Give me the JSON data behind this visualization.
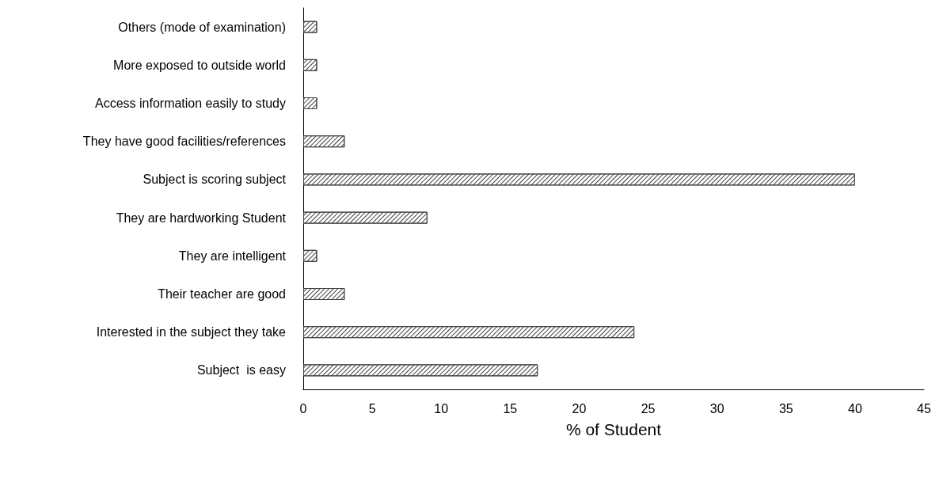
{
  "chart_data": {
    "type": "bar",
    "orientation": "horizontal",
    "xlabel": "% of Student",
    "categories": [
      "Others (mode of examination)",
      "More exposed to outside world",
      "Access information easily to study",
      "They have good facilities/references",
      "Subject is scoring subject",
      "They are hardworking Student",
      "They are intelligent",
      "Their teacher are good",
      "Interested in the subject they take",
      "Subject  is easy"
    ],
    "values": [
      1,
      1,
      1,
      3,
      40,
      9,
      1,
      3,
      24,
      17
    ],
    "color": "#404040",
    "xlim": [
      0,
      45
    ],
    "xticks": [
      0,
      5,
      10,
      15,
      20,
      25,
      30,
      35,
      40,
      45
    ],
    "grid": false
  }
}
